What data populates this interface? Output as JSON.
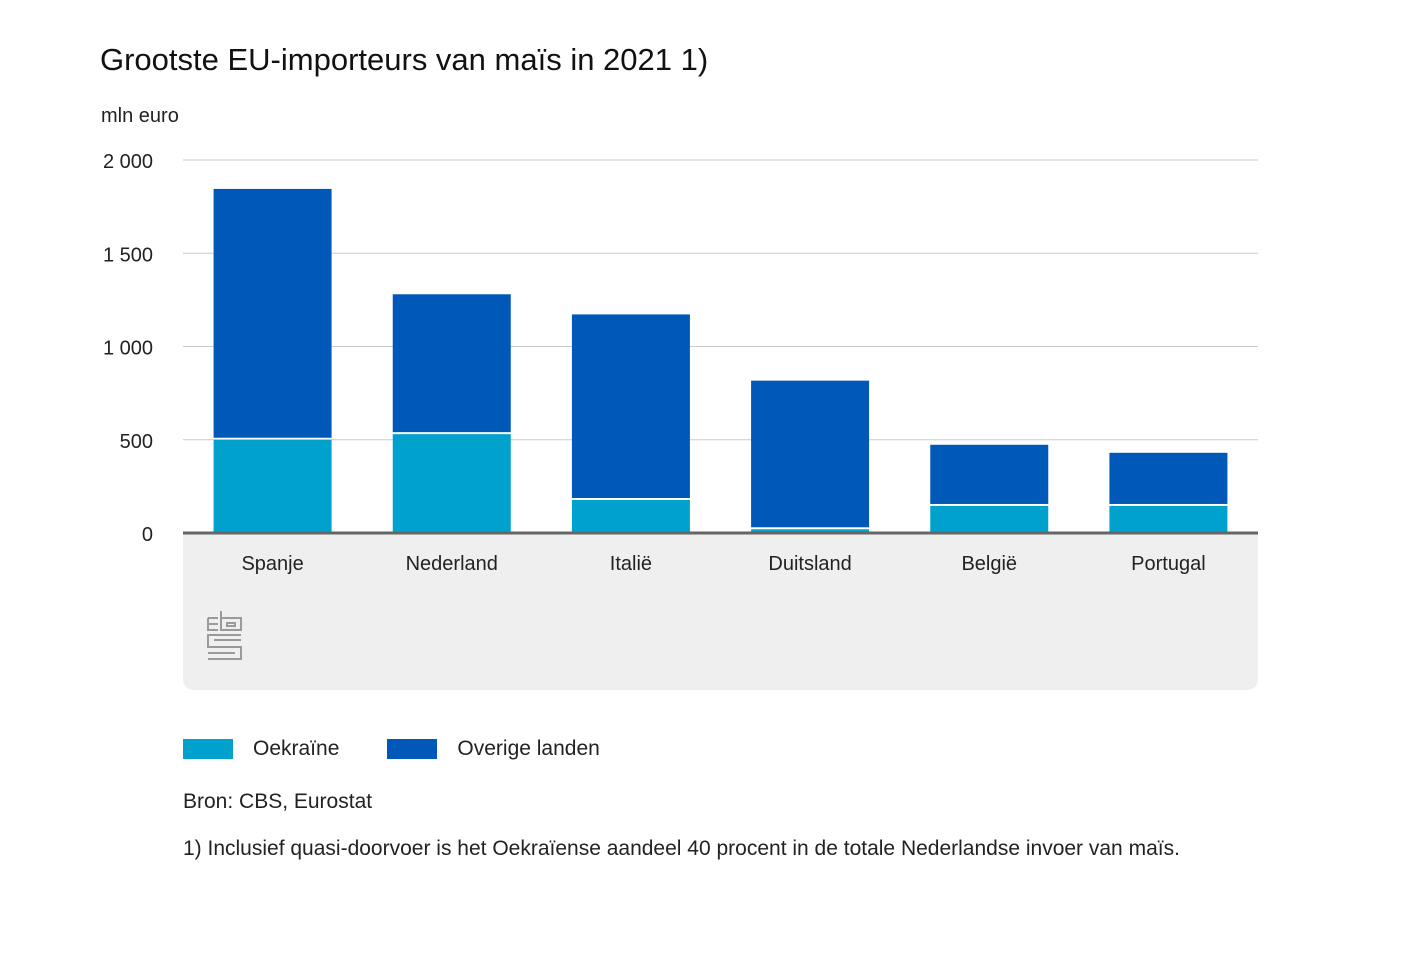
{
  "chart_data": {
    "type": "bar",
    "stacked": true,
    "title": "Grootste EU-importeurs van maïs in 2021 1)",
    "ylabel": "mln euro",
    "xlabel": "",
    "ylim": [
      0,
      2000
    ],
    "yticks": [
      0,
      500,
      1000,
      1500,
      2000
    ],
    "ytick_labels": [
      "0",
      "500",
      "1 000",
      "1 500",
      "2 000"
    ],
    "grid": true,
    "legend_position": "bottom-left",
    "categories": [
      "Spanje",
      "Nederland",
      "Italië",
      "Duitsland",
      "België",
      "Portugal"
    ],
    "series": [
      {
        "name": "Oekraïne",
        "color": "#00a1cd",
        "values": [
          500,
          530,
          177,
          20,
          145,
          145
        ]
      },
      {
        "name": "Overige landen",
        "color": "#0058b8",
        "values": [
          1345,
          750,
          995,
          797,
          328,
          285
        ]
      }
    ]
  },
  "legend": [
    {
      "label": "Oekraïne",
      "color": "#00a1cd"
    },
    {
      "label": "Overige landen",
      "color": "#0058b8"
    }
  ],
  "source": "Bron: CBS, Eurostat",
  "footnote": "1) Inclusief quasi-doorvoer is het Oekraïense aandeel 40 procent in de totale Nederlandse invoer van maïs.",
  "logo": "cbs-logo-icon"
}
